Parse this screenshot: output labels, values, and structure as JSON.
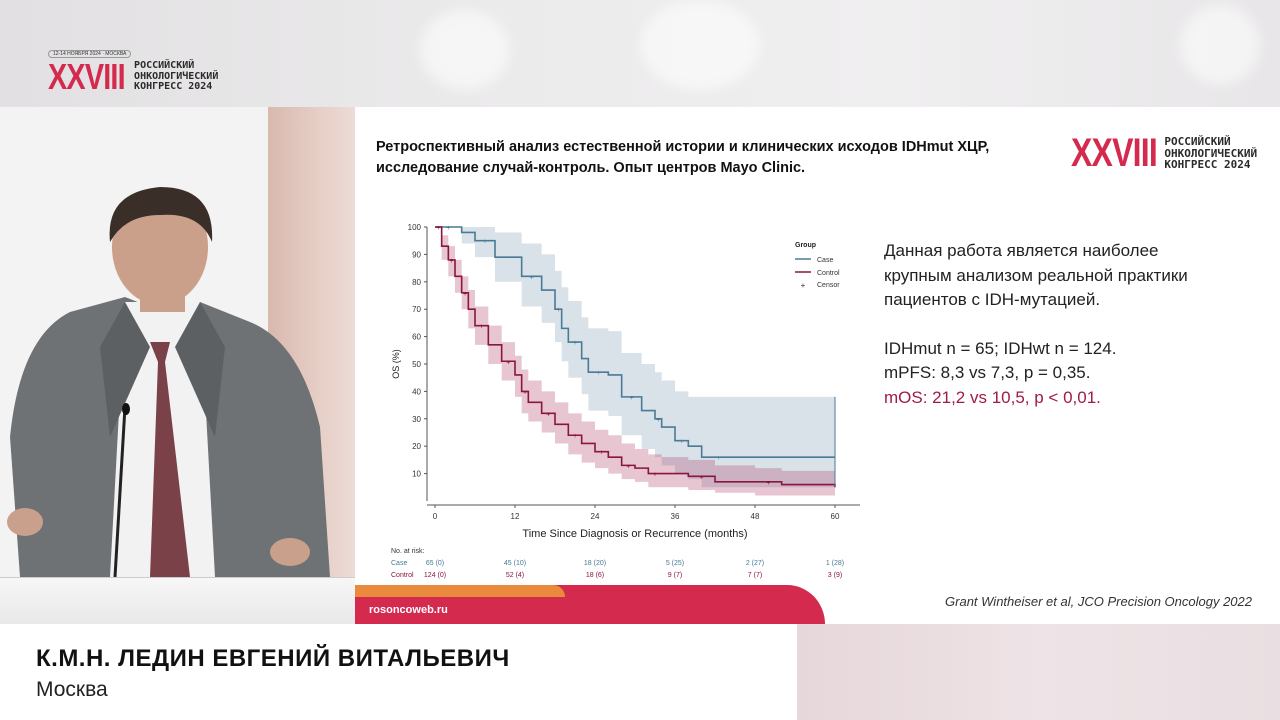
{
  "congress": {
    "dates": "12-14 НОЯБРЯ 2024 · МОСКВА",
    "roman": "XXVIII",
    "line1": "РОССИЙСКИЙ",
    "line2": "ОНКОЛОГИЧЕСКИЙ",
    "line3": "КОНГРЕСС 2024"
  },
  "slide": {
    "title_line1": "Ретроспективный анализ естественной истории и клинических исходов IDHmut ХЦР,",
    "title_line2": "исследование случай-контроль. Опыт центров Mayo Clinic.",
    "bullets": {
      "p1_line1": "Данная работа является наиболее",
      "p1_line2": "крупным анализом реальной практики",
      "p1_line3": "пациентов с IDH-мутацией.",
      "p2": "IDHmut n = 65; IDHwt n = 124.",
      "p3": "mPFS: 8,3 vs 7,3, p = 0,35.",
      "p4": "mOS: 21,2 vs 10,5, p < 0,01."
    },
    "citation": "Grant Wintheiser et al, JCO Precision Oncology 2022",
    "footer_url": "rosoncoweb.ru",
    "colors": {
      "accent": "#d42a4e",
      "orange": "#ea8a3c",
      "highlight": "#a01a4b",
      "case": "#4a7a95",
      "control": "#8a1540"
    }
  },
  "chart_data": {
    "type": "line",
    "subtype": "kaplan-meier",
    "xlabel": "Time Since Diagnosis or Recurrence (months)",
    "ylabel": "OS (%)",
    "xlim": [
      0,
      60
    ],
    "ylim": [
      0,
      100
    ],
    "xticks": [
      "0",
      "12",
      "24",
      "36",
      "48",
      "60"
    ],
    "yticks": [
      "100",
      "90",
      "80",
      "70",
      "60",
      "50",
      "40",
      "30",
      "20",
      "10"
    ],
    "legend": {
      "title": "Group",
      "entries": [
        "Case",
        "Control",
        "Censor"
      ],
      "placement": "top-right"
    },
    "series": [
      {
        "name": "Case",
        "color": "#4a7a95",
        "x": [
          0,
          4,
          6,
          9,
          13,
          16,
          18,
          19,
          20,
          22,
          23,
          26,
          28,
          31,
          33,
          34,
          36,
          38,
          40,
          45,
          60
        ],
        "y": [
          100,
          98,
          95,
          89,
          82,
          77,
          70,
          63,
          58,
          52,
          47,
          46,
          38,
          33,
          30,
          27,
          22,
          20,
          16,
          16,
          16
        ],
        "ci_upper": [
          100,
          100,
          100,
          98,
          94,
          90,
          84,
          78,
          73,
          67,
          63,
          62,
          54,
          50,
          47,
          44,
          40,
          38,
          38,
          38,
          38
        ],
        "ci_lower": [
          100,
          94,
          89,
          80,
          71,
          65,
          58,
          51,
          45,
          39,
          33,
          31,
          24,
          19,
          16,
          13,
          10,
          8,
          5,
          5,
          5
        ]
      },
      {
        "name": "Control",
        "color": "#8a1540",
        "x": [
          0,
          1,
          2,
          3,
          4,
          5,
          6,
          8,
          10,
          12,
          13,
          14,
          16,
          18,
          20,
          22,
          24,
          26,
          28,
          30,
          32,
          34,
          38,
          42,
          48,
          52,
          60
        ],
        "y": [
          100,
          93,
          88,
          82,
          76,
          70,
          64,
          57,
          51,
          46,
          40,
          36,
          32,
          28,
          24,
          21,
          18,
          16,
          13,
          12,
          10,
          10,
          9,
          7,
          7,
          6,
          5
        ],
        "ci_upper": [
          100,
          97,
          93,
          88,
          82,
          77,
          71,
          64,
          58,
          53,
          48,
          44,
          40,
          36,
          32,
          29,
          26,
          24,
          21,
          19,
          17,
          16,
          15,
          13,
          12,
          11,
          11
        ],
        "ci_lower": [
          100,
          88,
          82,
          76,
          70,
          63,
          57,
          50,
          44,
          38,
          32,
          29,
          25,
          21,
          17,
          14,
          12,
          10,
          8,
          7,
          5,
          5,
          4,
          3,
          2,
          2,
          1
        ]
      }
    ],
    "at_risk": {
      "title": "No. at risk:",
      "rows": [
        {
          "label": "Case",
          "values": [
            "65 (0)",
            "45 (10)",
            "18 (20)",
            "5 (25)",
            "2 (27)",
            "1 (28)"
          ]
        },
        {
          "label": "Control",
          "values": [
            "124 (0)",
            "52 (4)",
            "18 (6)",
            "9 (7)",
            "7 (7)",
            "3 (9)"
          ]
        }
      ]
    }
  },
  "speaker": {
    "name": "К.М.Н. ЛЕДИН ЕВГЕНИЙ ВИТАЛЬЕВИЧ",
    "city": "Москва"
  }
}
